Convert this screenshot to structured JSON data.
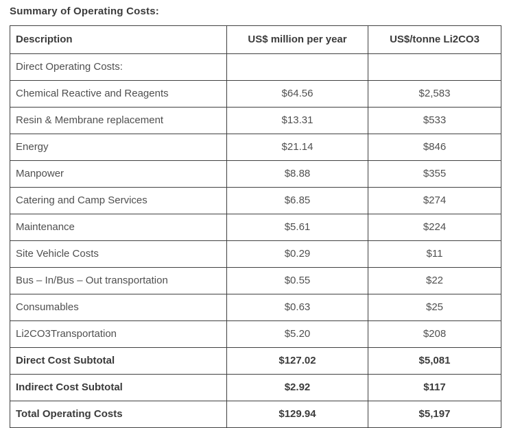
{
  "title": "Summary of Operating Costs:",
  "table": {
    "columns": [
      "Description",
      "US$ million per year",
      "US$/tonne Li2CO3"
    ],
    "rows": [
      {
        "cells": [
          "Direct Operating Costs:",
          "",
          ""
        ],
        "bold": false
      },
      {
        "cells": [
          "Chemical Reactive and Reagents",
          "$64.56",
          "$2,583"
        ],
        "bold": false
      },
      {
        "cells": [
          "Resin & Membrane replacement",
          "$13.31",
          "$533"
        ],
        "bold": false
      },
      {
        "cells": [
          "Energy",
          "$21.14",
          "$846"
        ],
        "bold": false
      },
      {
        "cells": [
          "Manpower",
          "$8.88",
          "$355"
        ],
        "bold": false
      },
      {
        "cells": [
          "Catering and Camp Services",
          "$6.85",
          "$274"
        ],
        "bold": false
      },
      {
        "cells": [
          "Maintenance",
          "$5.61",
          "$224"
        ],
        "bold": false
      },
      {
        "cells": [
          "Site Vehicle Costs",
          "$0.29",
          "$11"
        ],
        "bold": false
      },
      {
        "cells": [
          "Bus – In/Bus – Out transportation",
          "$0.55",
          "$22"
        ],
        "bold": false
      },
      {
        "cells": [
          "Consumables",
          "$0.63",
          "$25"
        ],
        "bold": false
      },
      {
        "cells": [
          "Li2CO3Transportation",
          "$5.20",
          "$208"
        ],
        "bold": false
      },
      {
        "cells": [
          "Direct Cost Subtotal",
          "$127.02",
          "$5,081"
        ],
        "bold": true
      },
      {
        "cells": [
          "Indirect Cost Subtotal",
          "$2.92",
          "$117"
        ],
        "bold": true
      },
      {
        "cells": [
          "Total Operating Costs",
          "$129.94",
          "$5,197"
        ],
        "bold": true
      }
    ]
  },
  "colors": {
    "text": "#4f4f4f",
    "heading_text": "#3b3b3b",
    "border": "#3f3f3f",
    "background": "#ffffff"
  }
}
